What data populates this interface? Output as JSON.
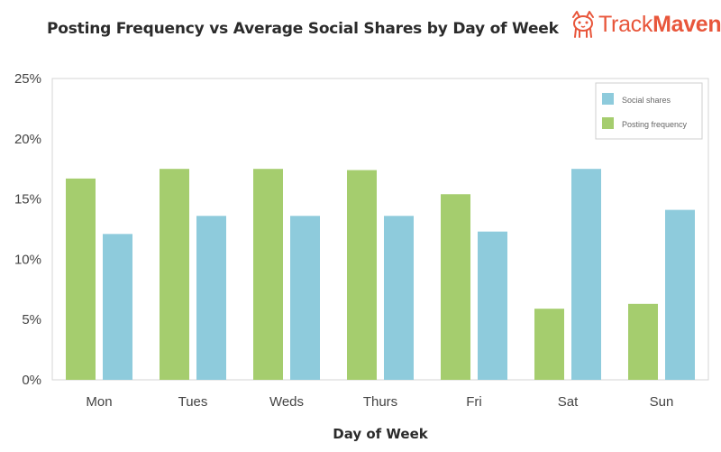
{
  "brand": {
    "prefix": "Track",
    "suffix": "Maven"
  },
  "chart_data": {
    "type": "bar",
    "title": "Posting Frequency vs Average Social Shares by Day of Week",
    "xlabel": "Day of Week",
    "ylabel": "",
    "ylim": [
      0,
      25
    ],
    "yticks": [
      0,
      5,
      10,
      15,
      20,
      25
    ],
    "ytick_labels": [
      "0%",
      "5%",
      "10%",
      "15%",
      "20%",
      "25%"
    ],
    "categories": [
      "Mon",
      "Tues",
      "Weds",
      "Thurs",
      "Fri",
      "Sat",
      "Sun"
    ],
    "series": [
      {
        "name": "Posting frequency",
        "color": "#a5cd6e",
        "values": [
          16.7,
          17.5,
          17.5,
          17.4,
          15.4,
          5.9,
          6.3
        ]
      },
      {
        "name": "Social shares",
        "color": "#8ecbdc",
        "values": [
          12.1,
          13.6,
          13.6,
          13.6,
          12.3,
          17.5,
          14.1
        ]
      }
    ],
    "legend": {
      "placement": "top-right",
      "entries": [
        {
          "label": "Social shares",
          "color": "#8ecbdc"
        },
        {
          "label": "Posting frequency",
          "color": "#a5cd6e"
        }
      ]
    },
    "grid": false
  }
}
